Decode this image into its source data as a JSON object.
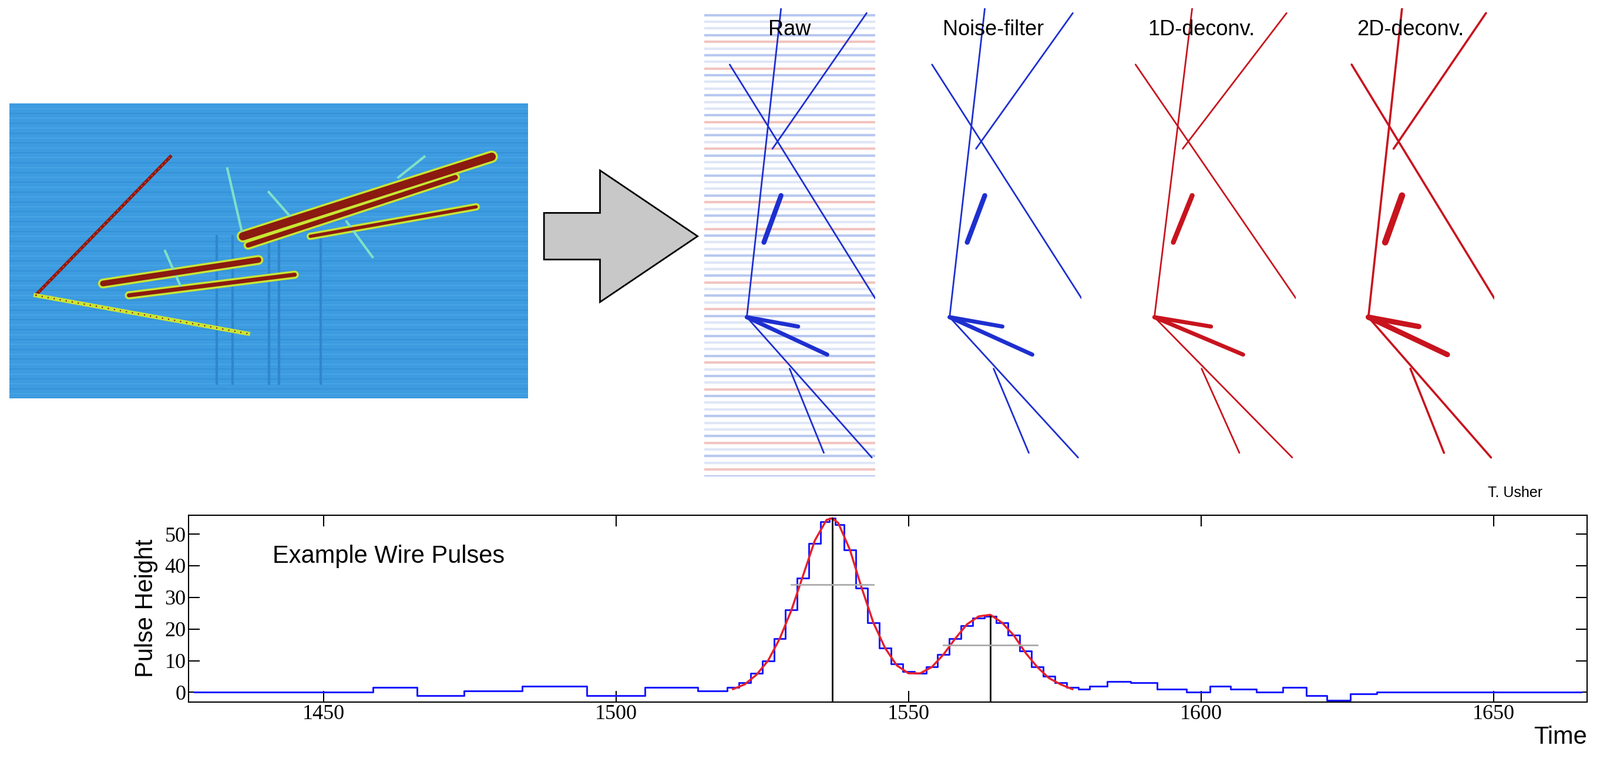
{
  "panels": {
    "labels": [
      "Raw",
      "Noise-filter",
      "1D-deconv.",
      "2D-deconv."
    ]
  },
  "credit": "T. Usher",
  "chart_data": {
    "type": "line",
    "title": "Example Wire Pulses",
    "x_label": "Time",
    "y_label": "Pulse Height",
    "x": [
      1428,
      1440,
      1455,
      1462,
      1470,
      1478,
      1490,
      1500,
      1510,
      1518,
      1520,
      1522,
      1524,
      1526,
      1528,
      1530,
      1532,
      1534,
      1536,
      1537,
      1538,
      1540,
      1542,
      1544,
      1546,
      1548,
      1550,
      1552,
      1554,
      1556,
      1558,
      1560,
      1562,
      1564,
      1566,
      1568,
      1570,
      1572,
      1574,
      1576,
      1578,
      1580,
      1582,
      1586,
      1590,
      1595,
      1600,
      1603,
      1607,
      1612,
      1616,
      1620,
      1623,
      1628,
      1632,
      1640,
      1650,
      1665
    ],
    "series": [
      {
        "color": "#1a1aff",
        "line_style": "steps",
        "values": [
          0,
          0,
          0,
          1.5,
          -1,
          0.5,
          2,
          -1,
          1.5,
          0.5,
          1.5,
          3,
          6,
          10,
          17,
          26,
          36,
          47,
          54,
          55,
          53,
          45,
          33,
          22,
          14,
          9,
          6.5,
          6,
          8,
          12,
          17,
          21,
          23.5,
          24,
          22,
          18,
          13,
          8,
          5,
          3,
          1.5,
          1,
          2,
          3.5,
          3,
          1,
          0,
          2,
          1,
          0,
          1.5,
          -1,
          -2.5,
          -0.5,
          0,
          0,
          0,
          0
        ]
      },
      {
        "color": "#e8202a",
        "line_style": "solid",
        "values": [
          null,
          null,
          null,
          null,
          null,
          null,
          null,
          null,
          null,
          null,
          1.0,
          2.5,
          5.5,
          10,
          17,
          26,
          37,
          48,
          54.5,
          55,
          53.5,
          45,
          33,
          22,
          14,
          8.5,
          6,
          6,
          8,
          12,
          17,
          21.5,
          24,
          24.5,
          22,
          18,
          12.5,
          8,
          4.5,
          2.5,
          1,
          null,
          null,
          null,
          null,
          null,
          null,
          null,
          null,
          null,
          null,
          null,
          null,
          null,
          null,
          null,
          null,
          null
        ]
      }
    ],
    "peaks": [
      {
        "center": 1537,
        "height": 55,
        "width_line_y": 34,
        "width_line_x": [
          1530,
          1544
        ]
      },
      {
        "center": 1564,
        "height": 24,
        "width_line_y": 15,
        "width_line_x": [
          1556,
          1572
        ]
      }
    ],
    "xlim": [
      1427,
      1666
    ],
    "ylim": [
      -3,
      56
    ],
    "xticks": [
      1450,
      1500,
      1550,
      1600,
      1650
    ],
    "yticks": [
      0,
      10,
      20,
      30,
      40,
      50
    ]
  }
}
